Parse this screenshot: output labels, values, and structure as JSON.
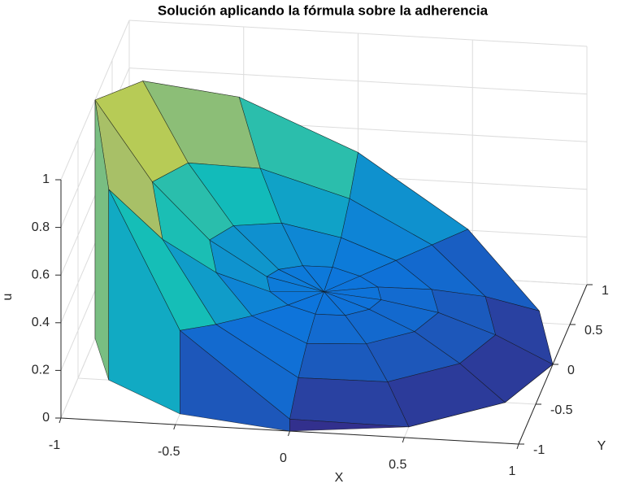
{
  "chart_data": {
    "type": "surface",
    "title": "Solución aplicando la fórmula sobre la adherencia",
    "xlabel": "X",
    "ylabel": "Y",
    "zlabel": "u",
    "xlim": [
      -1,
      1
    ],
    "ylim": [
      -1,
      1
    ],
    "zlim": [
      0,
      1
    ],
    "xticks": [
      -1,
      -0.5,
      0,
      0.5,
      1
    ],
    "yticks": [
      -1,
      -0.5,
      0,
      0.5,
      1
    ],
    "zticks": [
      0,
      0.2,
      0.4,
      0.6,
      0.8,
      1
    ],
    "grid": true,
    "colormap": [
      "#352a87",
      "#0d75dc",
      "#12beb9",
      "#a5be6a",
      "#f9fb0e"
    ],
    "r": [
      0,
      0.25,
      0.5,
      0.75,
      1
    ],
    "theta": [
      0,
      30,
      60,
      90,
      120,
      150,
      180,
      210,
      240,
      270,
      300,
      330
    ],
    "z": [
      [
        0.25,
        0.25,
        0.25,
        0.25,
        0.25,
        0.25,
        0.25,
        0.25,
        0.25,
        0.25,
        0.25,
        0.25
      ],
      [
        0.23,
        0.24,
        0.25,
        0.27,
        0.28,
        0.29,
        0.3,
        0.28,
        0.26,
        0.24,
        0.23,
        0.23
      ],
      [
        0.19,
        0.2,
        0.25,
        0.31,
        0.38,
        0.42,
        0.44,
        0.39,
        0.28,
        0.2,
        0.19,
        0.19
      ],
      [
        0.11,
        0.14,
        0.25,
        0.39,
        0.53,
        0.63,
        0.67,
        0.56,
        0.31,
        0.14,
        0.11,
        0.11
      ],
      [
        0,
        0.05,
        0.25,
        0.5,
        0.75,
        0.92,
        1,
        0.8,
        0.35,
        0.05,
        0,
        0
      ]
    ]
  }
}
